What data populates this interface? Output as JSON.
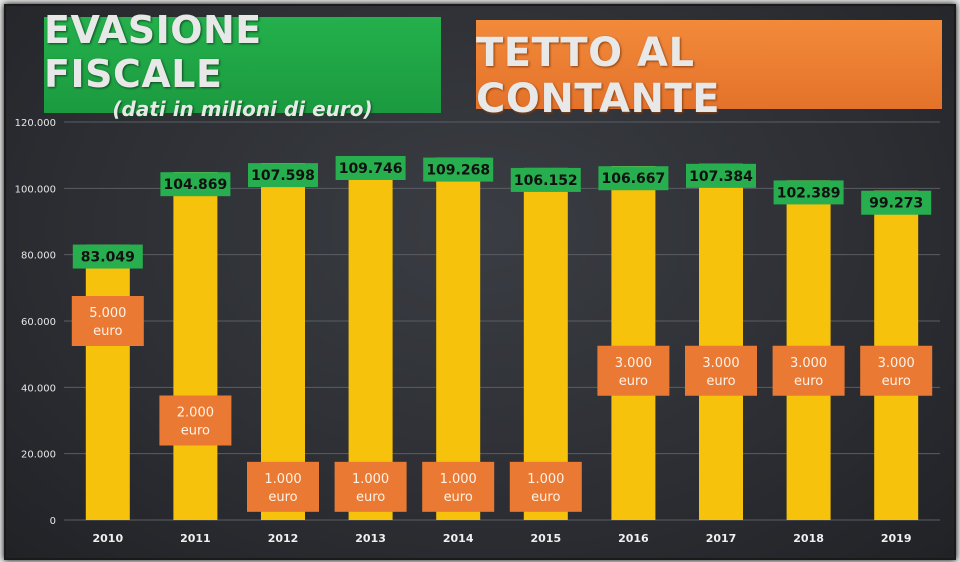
{
  "header": {
    "title": "EVASIONE FISCALE",
    "subtitle": "(dati in milioni di euro)",
    "right_title": "TETTO AL CONTANTE"
  },
  "chart_data": {
    "type": "bar",
    "categories": [
      "2010",
      "2011",
      "2012",
      "2013",
      "2014",
      "2015",
      "2016",
      "2017",
      "2018",
      "2019"
    ],
    "values": [
      83049,
      104869,
      107598,
      109746,
      109268,
      106152,
      106667,
      107384,
      102389,
      99273
    ],
    "value_labels": [
      "83.049",
      "104.869",
      "107.598",
      "109.746",
      "109.268",
      "106.152",
      "106.667",
      "107.384",
      "102.389",
      "99.273"
    ],
    "cash_limit_labels": [
      "5.000 euro",
      "2.000 euro",
      "1.000 euro",
      "1.000 euro",
      "1.000 euro",
      "1.000 euro",
      "3.000 euro",
      "3.000 euro",
      "3.000 euro",
      "3.000 euro"
    ],
    "cash_limit_levels": [
      60000,
      30000,
      10000,
      10000,
      10000,
      10000,
      45000,
      45000,
      45000,
      45000
    ],
    "ylim": [
      0,
      120000
    ],
    "yticks": [
      0,
      20000,
      40000,
      60000,
      80000,
      100000,
      120000
    ],
    "ytick_labels": [
      "0",
      "20.000",
      "40.000",
      "60.000",
      "80.000",
      "100.000",
      "120.000"
    ],
    "grid": true,
    "colors": {
      "bar": "#f6c20c",
      "value_label_bg": "#27ae4e",
      "cash_label_bg": "#ea7a33",
      "background": "#2f3136"
    }
  }
}
